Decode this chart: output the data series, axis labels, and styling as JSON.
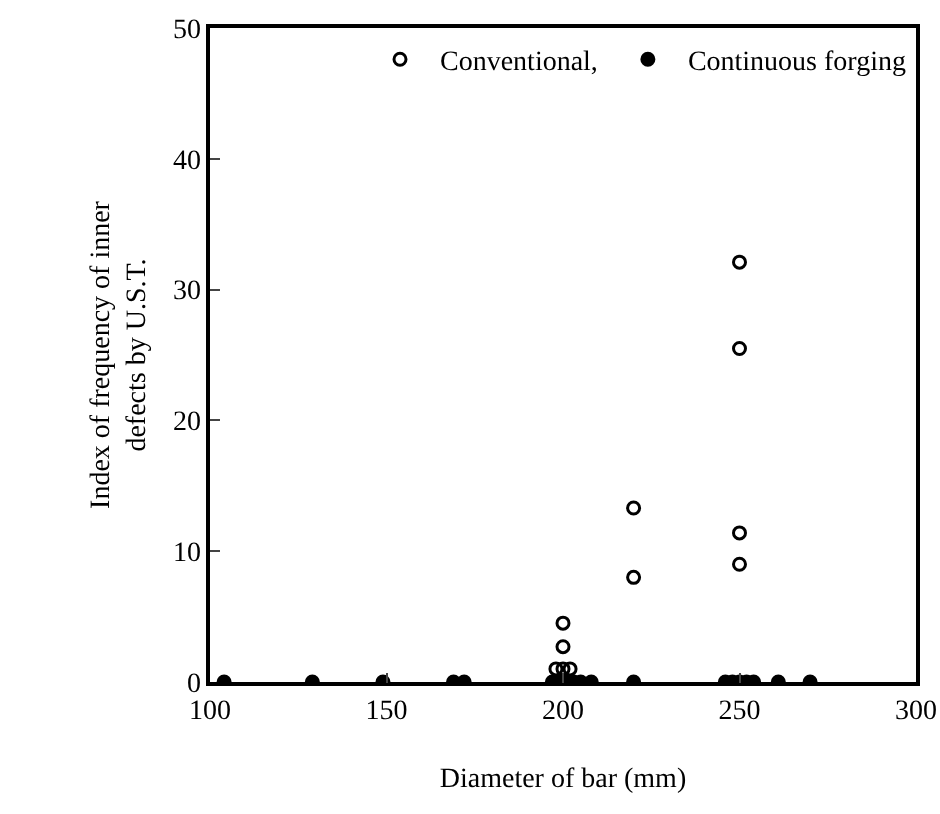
{
  "chart_data": {
    "type": "scatter",
    "xlabel": "Diameter of bar (mm)",
    "ylabel": "Index of frequency of inner\ndefects by U.S.T.",
    "series": [
      {
        "name": "Conventional,",
        "color": "#000000",
        "marker": "circle-open",
        "x": [
          200,
          198,
          202,
          200,
          200,
          220,
          220,
          250,
          250,
          250,
          250
        ],
        "values": [
          1.0,
          1.0,
          1.0,
          2.7,
          4.5,
          8.0,
          13.3,
          9.0,
          11.4,
          25.5,
          32.1
        ]
      },
      {
        "name": "Continuous forging",
        "color": "#000000",
        "marker": "circle",
        "x": [
          104,
          129,
          149,
          169,
          172,
          197,
          199,
          201,
          203,
          205,
          208,
          220,
          246,
          248,
          250,
          252,
          254,
          261,
          270
        ],
        "values": [
          0,
          0,
          0,
          0,
          0,
          0,
          0,
          0,
          0,
          0,
          0,
          0,
          0,
          0,
          0,
          0,
          0,
          0,
          0
        ]
      }
    ],
    "xlim": [
      100,
      300
    ],
    "xticks": [
      100,
      150,
      200,
      250,
      300
    ],
    "ylim": [
      0,
      50
    ],
    "yticks": [
      0,
      10,
      20,
      30,
      40,
      50
    ],
    "grid": false,
    "legend": "top right"
  }
}
